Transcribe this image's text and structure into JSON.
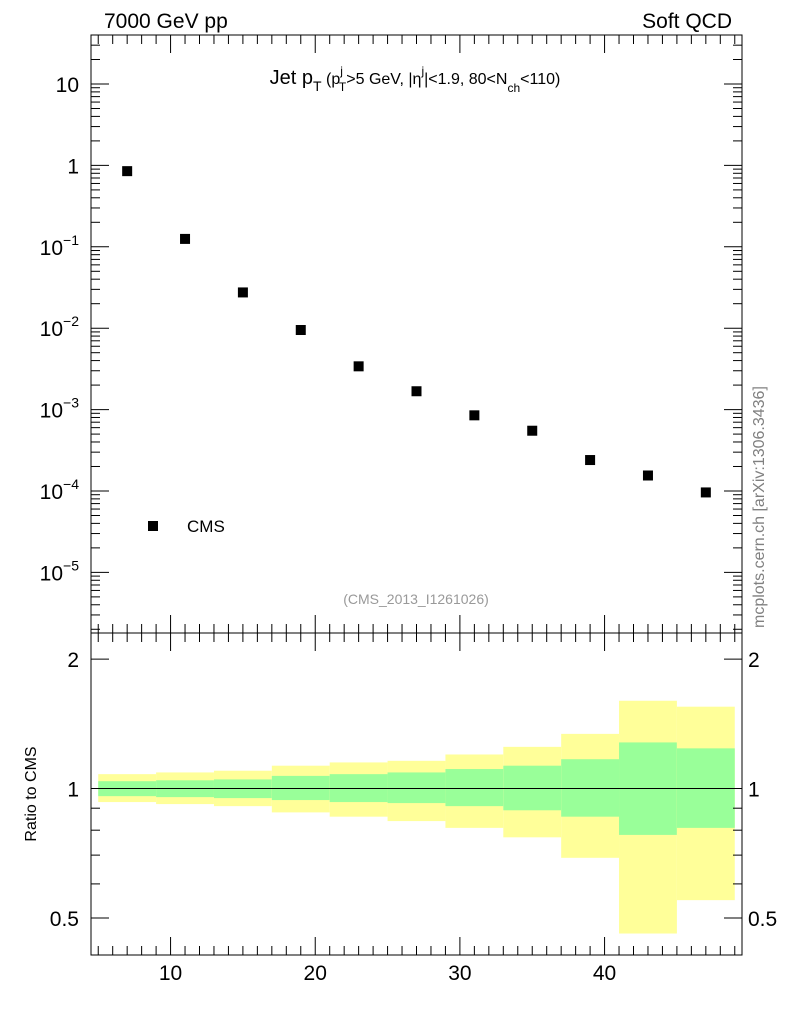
{
  "header": {
    "left": "7000 GeV pp",
    "right": "Soft QCD"
  },
  "side_label": "mcplots.cern.ch [arXiv:1306.3436]",
  "chart_data": [
    {
      "type": "scatter",
      "title_parts": {
        "main": "Jet p",
        "main_sub": "T",
        "open": " (p",
        "pt_sup": "j",
        "pt_sub": "T",
        "mid": ">5 GeV, |η",
        "eta_sup": "j",
        "tail": "|<1.9, 80<N",
        "n_sub": "ch",
        "end": "<110)"
      },
      "analysis_id": "(CMS_2013_I1261026)",
      "yscale": "log",
      "xlim": [
        4.5,
        49.5
      ],
      "ylim": [
        1.8e-06,
        40
      ],
      "y_tick_labels": [
        {
          "base": "10",
          "exp": "",
          "value": 10
        },
        {
          "base": "1",
          "exp": "",
          "value": 1
        },
        {
          "base": "10",
          "exp": "−1",
          "value": 0.1
        },
        {
          "base": "10",
          "exp": "−2",
          "value": 0.01
        },
        {
          "base": "10",
          "exp": "−3",
          "value": 0.001
        },
        {
          "base": "10",
          "exp": "−4",
          "value": 0.0001
        },
        {
          "base": "10",
          "exp": "−5",
          "value": 1e-05
        }
      ],
      "legend": {
        "label": "CMS",
        "position": "bottom-left"
      },
      "series": [
        {
          "name": "CMS",
          "color": "#000000",
          "marker": "square",
          "x": [
            7,
            11,
            15,
            19,
            23,
            27,
            31,
            35,
            39,
            43,
            47
          ],
          "y": [
            0.85,
            0.125,
            0.0275,
            0.0095,
            0.0034,
            0.00168,
            0.00085,
            0.00055,
            0.00024,
            0.000155,
            9.6e-05
          ]
        }
      ]
    },
    {
      "type": "area",
      "ylabel": "Ratio to CMS",
      "xlim": [
        4.5,
        49.5
      ],
      "ylim": [
        0.41,
        2.3
      ],
      "x_ticks": [
        10,
        20,
        30,
        40
      ],
      "y_ticks": [
        2,
        1,
        0.5
      ],
      "y_tick_labels": [
        "2",
        "1",
        "0.5"
      ],
      "reference_line": 1,
      "colors": {
        "inner_band": "#99ff99",
        "outer_band": "#ffff99"
      },
      "bins": [
        {
          "x_low": 5,
          "x_high": 9,
          "inner": [
            0.96,
            1.04
          ],
          "outer": [
            0.93,
            1.08
          ]
        },
        {
          "x_low": 9,
          "x_high": 13,
          "inner": [
            0.955,
            1.045
          ],
          "outer": [
            0.92,
            1.09
          ]
        },
        {
          "x_low": 13,
          "x_high": 17,
          "inner": [
            0.95,
            1.05
          ],
          "outer": [
            0.91,
            1.1
          ]
        },
        {
          "x_low": 17,
          "x_high": 21,
          "inner": [
            0.94,
            1.07
          ],
          "outer": [
            0.88,
            1.13
          ]
        },
        {
          "x_low": 21,
          "x_high": 25,
          "inner": [
            0.93,
            1.08
          ],
          "outer": [
            0.86,
            1.15
          ]
        },
        {
          "x_low": 25,
          "x_high": 29,
          "inner": [
            0.925,
            1.09
          ],
          "outer": [
            0.84,
            1.16
          ]
        },
        {
          "x_low": 29,
          "x_high": 33,
          "inner": [
            0.91,
            1.11
          ],
          "outer": [
            0.81,
            1.2
          ]
        },
        {
          "x_low": 33,
          "x_high": 37,
          "inner": [
            0.89,
            1.13
          ],
          "outer": [
            0.77,
            1.25
          ]
        },
        {
          "x_low": 37,
          "x_high": 41,
          "inner": [
            0.86,
            1.17
          ],
          "outer": [
            0.69,
            1.34
          ]
        },
        {
          "x_low": 41,
          "x_high": 45,
          "inner": [
            0.78,
            1.28
          ],
          "outer": [
            0.46,
            1.6
          ]
        },
        {
          "x_low": 45,
          "x_high": 49,
          "inner": [
            0.81,
            1.24
          ],
          "outer": [
            0.55,
            1.55
          ]
        }
      ]
    }
  ]
}
